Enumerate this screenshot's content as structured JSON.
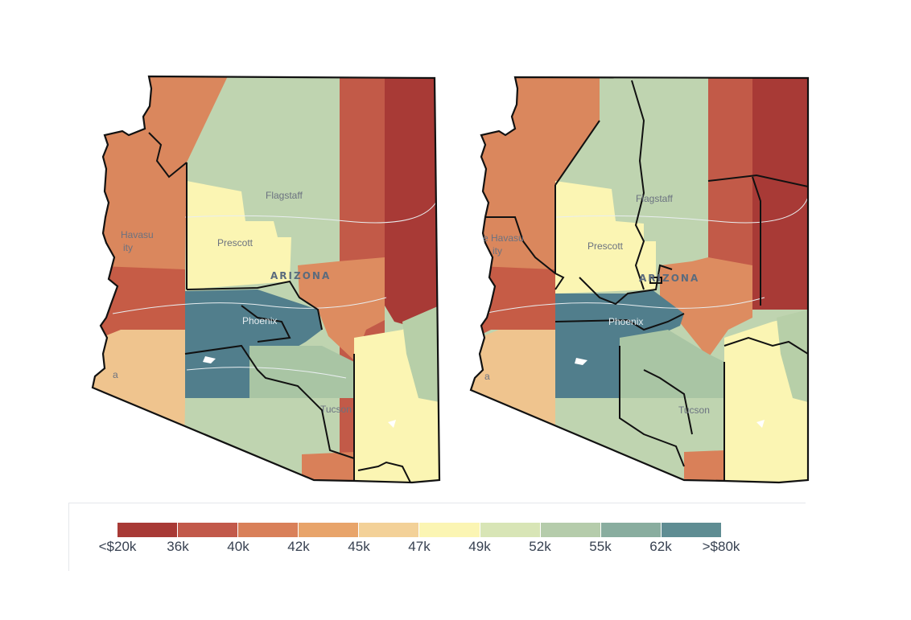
{
  "legend": {
    "colors": [
      "#a83a36",
      "#c2594a",
      "#d98059",
      "#e8a46a",
      "#f3d198",
      "#fbf5b3",
      "#d8e5b6",
      "#b5ccab",
      "#89ad9f",
      "#5f8d93",
      "#3f6b7f"
    ],
    "ticks": [
      "<$20k",
      "36k",
      "40k",
      "42k",
      "45k",
      "47k",
      "49k",
      "52k",
      "55k",
      "62k",
      ">$80k"
    ]
  },
  "map_left": {
    "state_label": "ARIZONA",
    "places": {
      "flagstaff": "Flagstaff",
      "prescott": "Prescott",
      "phoenix": "Phoenix",
      "tucson": "Tucson",
      "havasu": "Havasu",
      "havasu_city": "ity",
      "yuma": "a"
    }
  },
  "map_right": {
    "state_label": "ARIZONA",
    "places": {
      "flagstaff": "Flagstaff",
      "prescott": "Prescott",
      "phoenix": "Phoenix",
      "tucson": "Tucson",
      "havasu": "e Havasu",
      "havasu_city": "ity",
      "yuma": "a"
    }
  }
}
